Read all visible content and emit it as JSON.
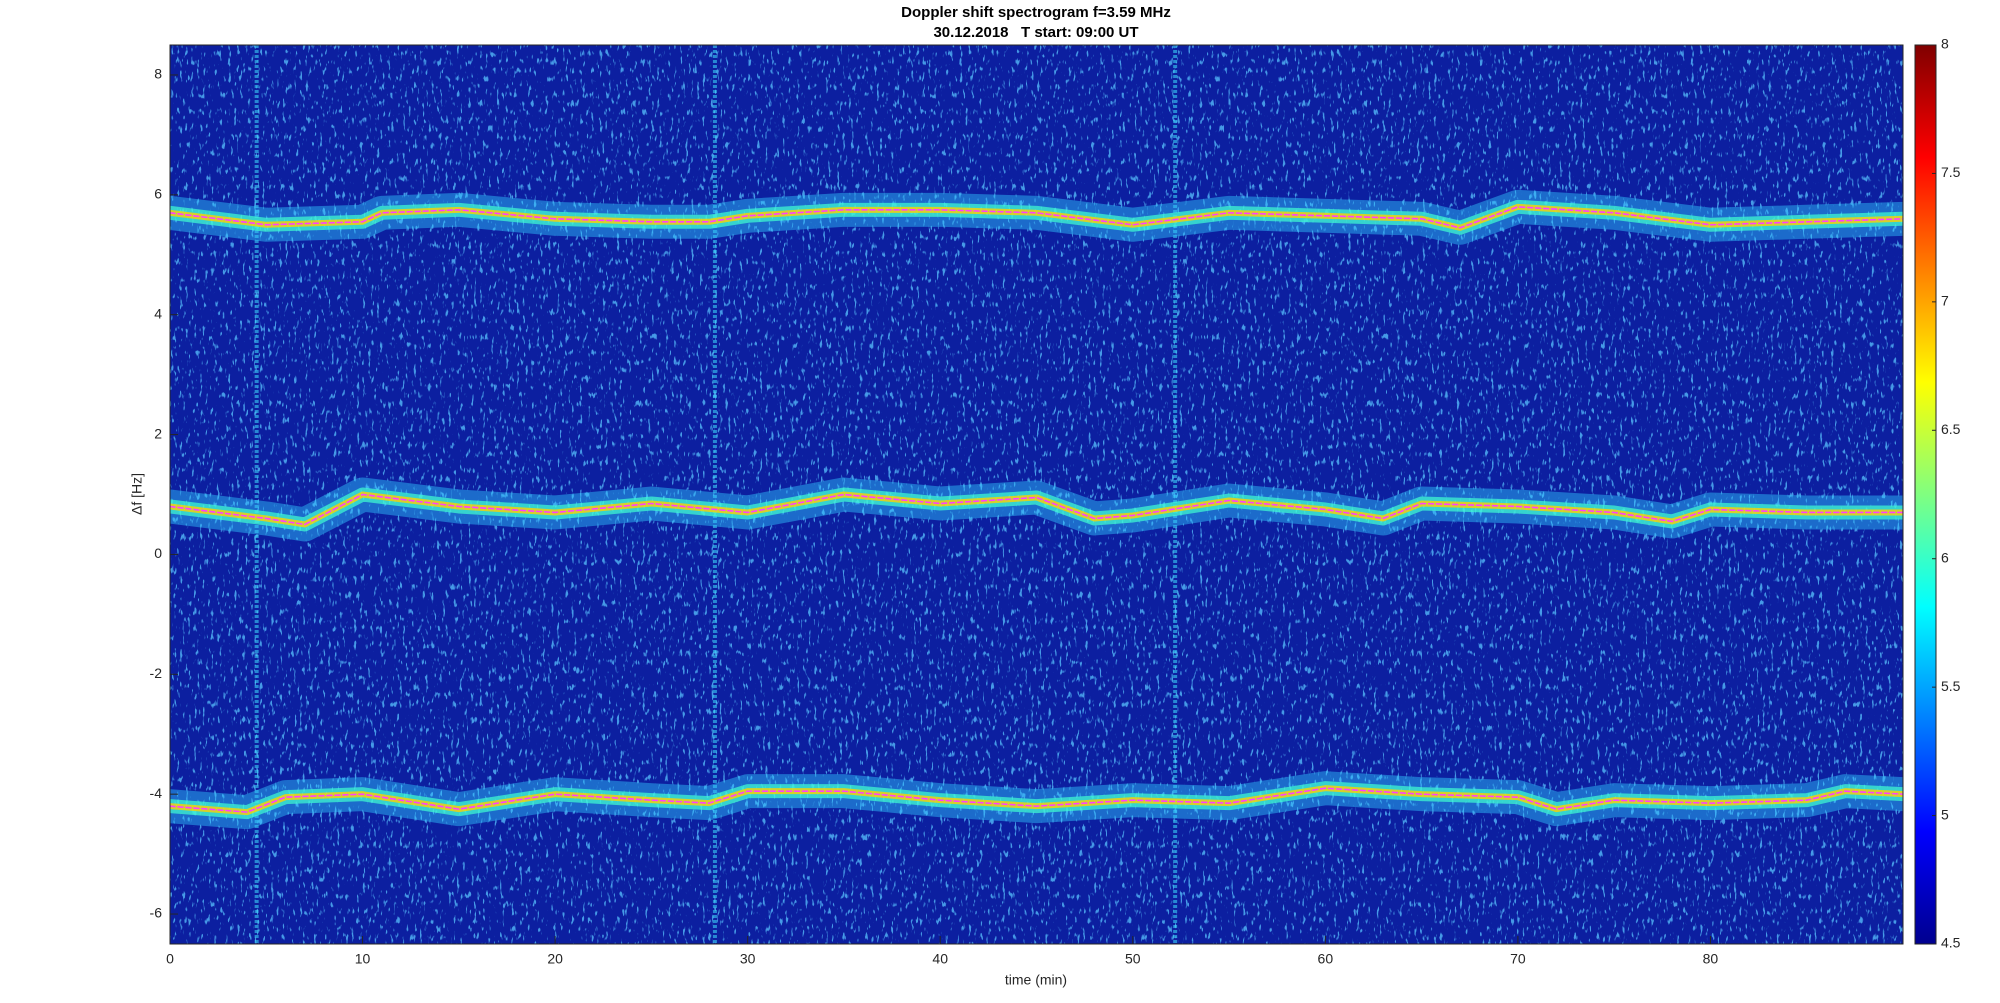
{
  "chart_data": {
    "type": "spectrogram",
    "title": "Doppler shift spectrogram f=3.59 MHz",
    "subtitle": "30.12.2018   T start: 09:00 UT",
    "x_label": "time (min)",
    "y_label": "Δf [Hz]",
    "xlim": [
      0,
      90
    ],
    "xticks": [
      0,
      10,
      20,
      30,
      40,
      50,
      60,
      70,
      80
    ],
    "ylim": [
      -6.5,
      8.5
    ],
    "yticks": [
      -6,
      -4,
      -2,
      0,
      2,
      4,
      6,
      8
    ],
    "colormap": "jet",
    "clim": [
      4.5,
      8
    ],
    "cticks": [
      4.5,
      5,
      5.5,
      6,
      6.5,
      7,
      7.5,
      8
    ],
    "vertical_streaks_x": [
      4.5,
      28.3,
      52.2
    ],
    "series": [
      {
        "color": "#ff40ff",
        "x": [
          0,
          5,
          10,
          11,
          15,
          20,
          25,
          28,
          30,
          35,
          40,
          45,
          50,
          55,
          60,
          65,
          67,
          70,
          75,
          80,
          85,
          90
        ],
        "values": [
          5.7,
          5.5,
          5.55,
          5.7,
          5.75,
          5.6,
          5.55,
          5.55,
          5.65,
          5.75,
          5.75,
          5.7,
          5.5,
          5.7,
          5.65,
          5.6,
          5.45,
          5.8,
          5.7,
          5.5,
          5.55,
          5.6
        ]
      },
      {
        "color": "#ff40ff",
        "x": [
          0,
          5,
          7,
          10,
          15,
          20,
          25,
          30,
          35,
          40,
          45,
          48,
          50,
          55,
          60,
          63,
          65,
          70,
          75,
          78,
          80,
          85,
          90
        ],
        "values": [
          0.8,
          0.6,
          0.5,
          1.0,
          0.8,
          0.7,
          0.85,
          0.7,
          1.0,
          0.85,
          0.95,
          0.6,
          0.65,
          0.9,
          0.75,
          0.6,
          0.85,
          0.8,
          0.7,
          0.55,
          0.75,
          0.7,
          0.7
        ]
      },
      {
        "color": "#ff40ff",
        "x": [
          0,
          4,
          6,
          10,
          15,
          20,
          25,
          28,
          30,
          35,
          40,
          45,
          50,
          55,
          60,
          65,
          70,
          72,
          75,
          80,
          85,
          87,
          90
        ],
        "values": [
          -4.2,
          -4.3,
          -4.05,
          -4.0,
          -4.25,
          -4.0,
          -4.1,
          -4.15,
          -3.95,
          -3.95,
          -4.1,
          -4.2,
          -4.1,
          -4.15,
          -3.9,
          -4.0,
          -4.05,
          -4.25,
          -4.1,
          -4.15,
          -4.1,
          -3.95,
          -4.0
        ]
      }
    ]
  }
}
